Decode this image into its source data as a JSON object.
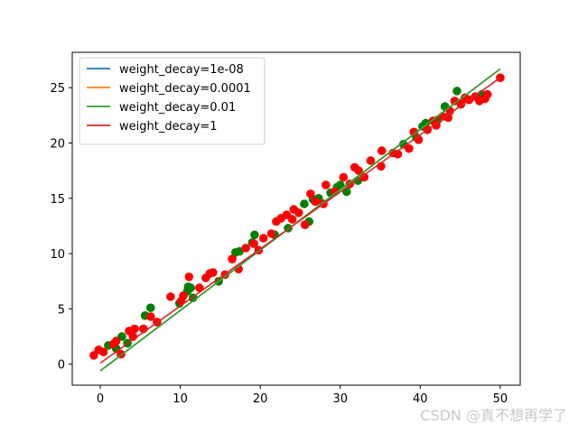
{
  "watermark": "CSDN @真不想再学了",
  "chart_data": {
    "type": "scatter",
    "title": "",
    "xlabel": "",
    "ylabel": "",
    "xlim": [
      -3.5,
      52.5
    ],
    "ylim": [
      -1.9,
      28.2
    ],
    "xticks": [
      0,
      10,
      20,
      30,
      40,
      50
    ],
    "yticks": [
      0,
      5,
      10,
      15,
      20,
      25
    ],
    "grid": false,
    "legend_position": "top-left",
    "lines": [
      {
        "name": "weight_decay=1e-08",
        "color": "#1f77b4",
        "x": [
          0,
          50
        ],
        "y": [
          -0.6,
          26.7
        ]
      },
      {
        "name": "weight_decay=0.0001",
        "color": "#ff7f0e",
        "x": [
          0,
          50
        ],
        "y": [
          -0.6,
          26.7
        ]
      },
      {
        "name": "weight_decay=0.01",
        "color": "#2ca02c",
        "x": [
          0,
          50
        ],
        "y": [
          -0.6,
          26.7
        ]
      },
      {
        "name": "weight_decay=1",
        "color": "#d62728",
        "x": [
          0,
          50
        ],
        "y": [
          0.1,
          25.9
        ]
      }
    ],
    "scatter_series": [
      {
        "color": "#008000",
        "points": [
          [
            1.0,
            1.7
          ],
          [
            2.0,
            1.4
          ],
          [
            2.7,
            2.5
          ],
          [
            3.4,
            1.9
          ],
          [
            5.6,
            4.4
          ],
          [
            6.3,
            5.1
          ],
          [
            9.9,
            5.5
          ],
          [
            10.9,
            6.6
          ],
          [
            11.0,
            7.0
          ],
          [
            11.6,
            6.0
          ],
          [
            11.3,
            6.9
          ],
          [
            14.8,
            7.5
          ],
          [
            16.9,
            10.1
          ],
          [
            17.4,
            10.2
          ],
          [
            19.0,
            11.0
          ],
          [
            19.3,
            11.7
          ],
          [
            21.8,
            11.7
          ],
          [
            23.5,
            12.3
          ],
          [
            25.5,
            14.5
          ],
          [
            26.1,
            12.9
          ],
          [
            26.6,
            14.9
          ],
          [
            27.3,
            15.0
          ],
          [
            28.8,
            15.5
          ],
          [
            29.6,
            16.0
          ],
          [
            30.0,
            16.2
          ],
          [
            30.8,
            15.6
          ],
          [
            32.2,
            16.6
          ],
          [
            37.9,
            19.9
          ],
          [
            39.5,
            20.5
          ],
          [
            40.3,
            21.5
          ],
          [
            40.7,
            21.8
          ],
          [
            42.2,
            22.1
          ],
          [
            43.1,
            23.3
          ],
          [
            44.6,
            24.7
          ],
          [
            47.7,
            24.4
          ]
        ]
      },
      {
        "color": "#ff0000",
        "points": [
          [
            -0.8,
            0.8
          ],
          [
            -0.2,
            1.3
          ],
          [
            0.4,
            1.1
          ],
          [
            1.6,
            1.8
          ],
          [
            2.0,
            2.1
          ],
          [
            2.6,
            0.9
          ],
          [
            3.6,
            3.0
          ],
          [
            4.1,
            2.5
          ],
          [
            4.3,
            3.2
          ],
          [
            5.4,
            3.2
          ],
          [
            6.3,
            4.3
          ],
          [
            7.1,
            3.8
          ],
          [
            8.8,
            6.1
          ],
          [
            10.1,
            5.7
          ],
          [
            10.4,
            6.2
          ],
          [
            11.1,
            7.9
          ],
          [
            12.4,
            6.9
          ],
          [
            13.2,
            7.8
          ],
          [
            13.7,
            8.2
          ],
          [
            14.1,
            8.3
          ],
          [
            15.6,
            8.1
          ],
          [
            16.5,
            9.5
          ],
          [
            17.3,
            8.6
          ],
          [
            18.2,
            10.5
          ],
          [
            19.2,
            10.9
          ],
          [
            19.8,
            10.3
          ],
          [
            20.4,
            11.4
          ],
          [
            21.4,
            11.8
          ],
          [
            22.0,
            12.9
          ],
          [
            22.6,
            13.2
          ],
          [
            23.3,
            13.5
          ],
          [
            24.0,
            13.1
          ],
          [
            24.2,
            14.0
          ],
          [
            24.8,
            13.7
          ],
          [
            25.6,
            12.6
          ],
          [
            26.3,
            15.4
          ],
          [
            26.9,
            14.7
          ],
          [
            27.9,
            14.5
          ],
          [
            28.2,
            16.2
          ],
          [
            29.3,
            15.6
          ],
          [
            30.4,
            16.9
          ],
          [
            31.2,
            16.3
          ],
          [
            31.8,
            17.8
          ],
          [
            32.3,
            17.5
          ],
          [
            33.0,
            16.9
          ],
          [
            33.8,
            18.4
          ],
          [
            35.1,
            17.9
          ],
          [
            35.2,
            19.3
          ],
          [
            36.6,
            19.1
          ],
          [
            37.2,
            19.0
          ],
          [
            38.6,
            19.5
          ],
          [
            39.2,
            21.0
          ],
          [
            39.8,
            20.3
          ],
          [
            40.9,
            21.2
          ],
          [
            41.6,
            22.0
          ],
          [
            42.0,
            21.6
          ],
          [
            42.8,
            22.4
          ],
          [
            43.5,
            22.3
          ],
          [
            43.7,
            22.9
          ],
          [
            44.3,
            23.8
          ],
          [
            45.1,
            23.5
          ],
          [
            45.6,
            24.1
          ],
          [
            46.1,
            23.9
          ],
          [
            46.9,
            24.2
          ],
          [
            47.4,
            23.8
          ],
          [
            48.1,
            24.0
          ],
          [
            48.4,
            24.4
          ],
          [
            50.0,
            25.9
          ]
        ]
      }
    ]
  }
}
